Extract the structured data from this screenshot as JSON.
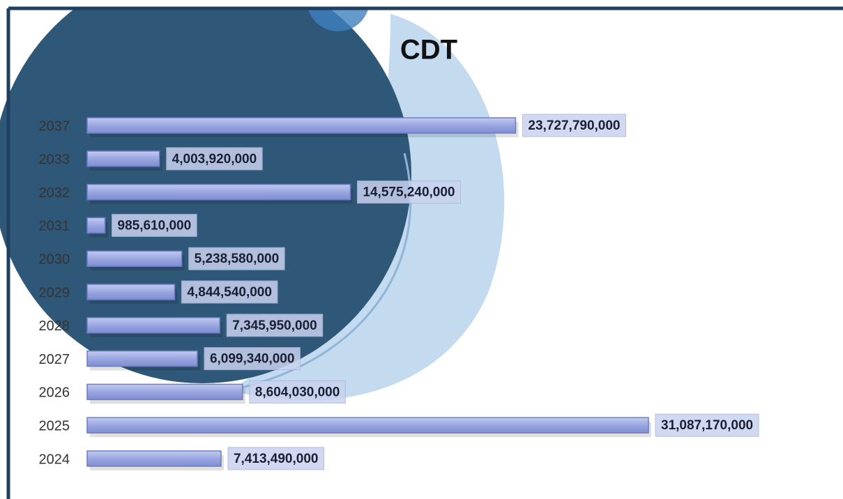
{
  "chart_data": {
    "type": "bar",
    "orientation": "horizontal",
    "title": "CDT",
    "categories": [
      "2037",
      "2033",
      "2032",
      "2031",
      "2030",
      "2029",
      "2028",
      "2027",
      "2026",
      "2025",
      "2024"
    ],
    "values": [
      23727790000,
      4003920000,
      14575240000,
      985610000,
      5238580000,
      4844540000,
      7345950000,
      6099340000,
      8604030000,
      31087170000,
      7413490000
    ],
    "value_labels": [
      "23,727,790,000",
      "4,003,920,000",
      "14,575,240,000",
      "985,610,000",
      "5,238,580,000",
      "4,844,540,000",
      "7,345,950,000",
      "6,099,340,000",
      "8,604,030,000",
      "31,087,170,000",
      "7,413,490,000"
    ],
    "color": "#9aa6e0"
  }
}
